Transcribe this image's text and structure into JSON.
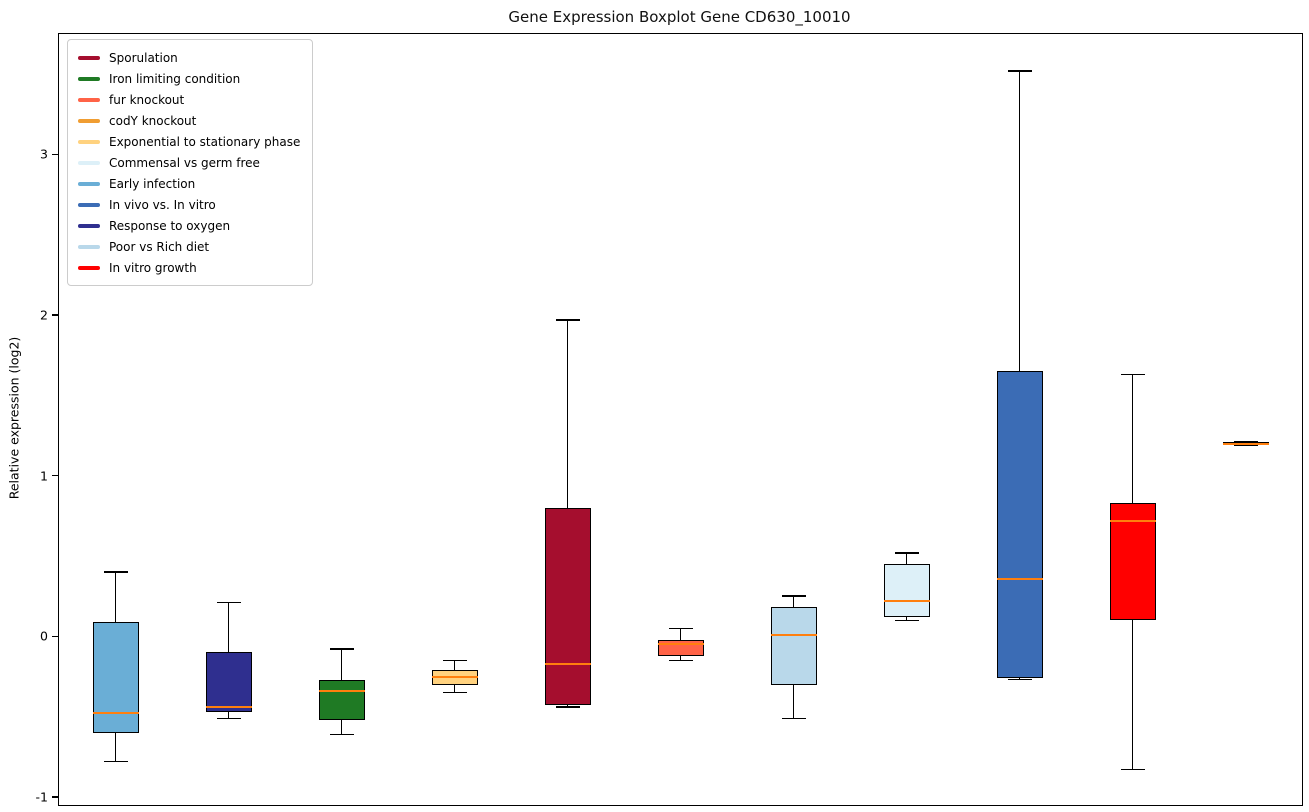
{
  "chart_data": {
    "type": "boxplot",
    "title": "Gene Expression Boxplot Gene CD630_10010",
    "ylabel": "Relative expression (log2)",
    "xlabel": "",
    "ylim": [
      -1.05,
      3.75
    ],
    "yticks": [
      -1,
      0,
      1,
      2,
      3
    ],
    "grid": false,
    "legend_position": "upper left",
    "median_color": "#ff7f0e",
    "legend": [
      {
        "label": "Sporulation",
        "color": "#a50e2e"
      },
      {
        "label": "Iron limiting condition",
        "color": "#1f7a24"
      },
      {
        "label": "fur knockout",
        "color": "#ff6347"
      },
      {
        "label": "codY knockout",
        "color": "#f09d32"
      },
      {
        "label": "Exponential to stationary phase",
        "color": "#ffd27f"
      },
      {
        "label": "Commensal vs germ free",
        "color": "#ddf0f8"
      },
      {
        "label": "Early infection",
        "color": "#6aaed6"
      },
      {
        "label": "In vivo vs. In vitro",
        "color": "#3b6cb5"
      },
      {
        "label": "Response to oxygen",
        "color": "#2f2f8f"
      },
      {
        "label": "Poor vs Rich diet",
        "color": "#b9d8ea"
      },
      {
        "label": "In vitro growth",
        "color": "#ff0000"
      }
    ],
    "boxes": [
      {
        "name": "Early infection",
        "color": "#6aaed6",
        "whislo": -0.78,
        "q1": -0.6,
        "med": -0.48,
        "q3": 0.09,
        "whishi": 0.4
      },
      {
        "name": "Response to oxygen",
        "color": "#2f2f8f",
        "whislo": -0.51,
        "q1": -0.47,
        "med": -0.44,
        "q3": -0.1,
        "whishi": 0.21
      },
      {
        "name": "Iron limiting condition",
        "color": "#1f7a24",
        "whislo": -0.61,
        "q1": -0.52,
        "med": -0.34,
        "q3": -0.27,
        "whishi": -0.08
      },
      {
        "name": "Exponential to stationary phase",
        "color": "#ffd27f",
        "whislo": -0.35,
        "q1": -0.3,
        "med": -0.25,
        "q3": -0.21,
        "whishi": -0.15
      },
      {
        "name": "Sporulation",
        "color": "#a50e2e",
        "whislo": -0.44,
        "q1": -0.43,
        "med": -0.17,
        "q3": 0.8,
        "whishi": 1.97
      },
      {
        "name": "fur knockout",
        "color": "#ff6347",
        "whislo": -0.15,
        "q1": -0.12,
        "med": -0.05,
        "q3": -0.02,
        "whishi": 0.05
      },
      {
        "name": "Poor vs Rich diet",
        "color": "#b9d8ea",
        "whislo": -0.51,
        "q1": -0.3,
        "med": 0.01,
        "q3": 0.18,
        "whishi": 0.25
      },
      {
        "name": "Commensal vs germ free",
        "color": "#ddf0f8",
        "whislo": 0.1,
        "q1": 0.12,
        "med": 0.22,
        "q3": 0.45,
        "whishi": 0.52
      },
      {
        "name": "In vivo vs. In vitro",
        "color": "#3b6cb5",
        "whislo": -0.27,
        "q1": -0.26,
        "med": 0.36,
        "q3": 1.65,
        "whishi": 3.52
      },
      {
        "name": "In vitro growth",
        "color": "#ff0000",
        "whislo": -0.83,
        "q1": 0.1,
        "med": 0.72,
        "q3": 0.83,
        "whishi": 1.63
      },
      {
        "name": "codY knockout",
        "color": "#f09d32",
        "whislo": 1.19,
        "q1": 1.19,
        "med": 1.2,
        "q3": 1.21,
        "whishi": 1.21
      }
    ]
  }
}
